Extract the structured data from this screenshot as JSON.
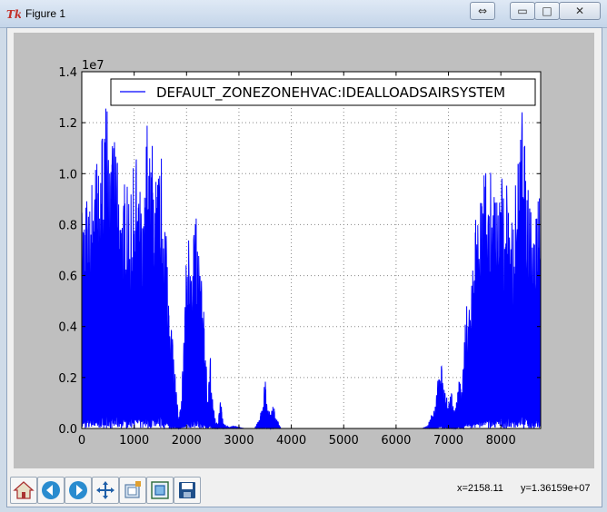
{
  "window": {
    "title": "Figure 1",
    "icon_text": "Tk"
  },
  "window_controls": {
    "restore": "⇔",
    "minimize": "▭",
    "maximize": "□",
    "close": "✕"
  },
  "status": {
    "x_readout": "x=2158.11",
    "y_readout": "y=1.36159e+07"
  },
  "toolbar": {
    "buttons": [
      "home-icon",
      "back-icon",
      "forward-icon",
      "pan-icon",
      "configure-subplots-icon",
      "zoom-icon",
      "save-icon"
    ]
  },
  "chart_data": {
    "type": "line",
    "title": "",
    "xlabel": "",
    "ylabel": "",
    "y_offset_text": "1e7",
    "xlim": [
      0,
      8760
    ],
    "ylim": [
      0,
      14000000
    ],
    "xticks": [
      0,
      1000,
      2000,
      3000,
      4000,
      5000,
      6000,
      7000,
      8000
    ],
    "xtick_labels": [
      "0",
      "1000",
      "2000",
      "3000",
      "4000",
      "5000",
      "6000",
      "7000",
      "8000"
    ],
    "yticks": [
      0,
      2000000,
      4000000,
      6000000,
      8000000,
      10000000,
      12000000,
      14000000
    ],
    "ytick_labels": [
      "0.0",
      "0.2",
      "0.4",
      "0.6",
      "0.8",
      "1.0",
      "1.2",
      "1.4"
    ],
    "grid": true,
    "legend_position": "top-right",
    "line_color": "#0000ff",
    "series": [
      {
        "name": "DEFAULT_ZONEZONEHVAC:IDEALLOADSAIRSYSTEM",
        "envelope_x": [
          0,
          50,
          100,
          150,
          200,
          250,
          300,
          350,
          400,
          450,
          500,
          550,
          600,
          650,
          700,
          750,
          800,
          850,
          900,
          950,
          1000,
          1050,
          1100,
          1150,
          1200,
          1250,
          1300,
          1350,
          1400,
          1450,
          1500,
          1550,
          1600,
          1650,
          1700,
          1750,
          1800,
          1850,
          1900,
          1950,
          2000,
          2050,
          2100,
          2150,
          2200,
          2250,
          2300,
          2350,
          2400,
          2450,
          2500,
          2550,
          2600,
          2650,
          2700,
          2800,
          2900,
          3000,
          3100,
          3200,
          3300,
          3400,
          3450,
          3500,
          3550,
          3600,
          3650,
          3700,
          3800,
          4000,
          5000,
          6000,
          6500,
          6600,
          6650,
          6700,
          6750,
          6800,
          6850,
          6900,
          6950,
          7000,
          7050,
          7100,
          7150,
          7200,
          7250,
          7300,
          7350,
          7400,
          7450,
          7500,
          7550,
          7600,
          7650,
          7700,
          7750,
          7800,
          7850,
          7900,
          7950,
          8000,
          8050,
          8100,
          8150,
          8200,
          8250,
          8300,
          8350,
          8400,
          8450,
          8500,
          8550,
          8600,
          8650,
          8700,
          8760
        ],
        "envelope_y": [
          8800000,
          8500000,
          9300000,
          8700000,
          10200000,
          10900000,
          10600000,
          11400000,
          12100000,
          13300000,
          12700000,
          10300000,
          11500000,
          12200000,
          9900000,
          8600000,
          9500000,
          10300000,
          8700000,
          9700000,
          10500000,
          10800000,
          9800000,
          8400000,
          9600000,
          12700000,
          10700000,
          11400000,
          10200000,
          9900000,
          11800000,
          9500000,
          8100000,
          6300000,
          4300000,
          3300000,
          1600000,
          400000,
          1100000,
          3900000,
          7100000,
          8000000,
          7600000,
          8600000,
          8100000,
          7000000,
          5300000,
          4100000,
          1400000,
          3000000,
          1200000,
          300000,
          200000,
          1300000,
          200000,
          50000,
          100000,
          50000,
          0,
          0,
          0,
          500000,
          900000,
          2000000,
          800000,
          600000,
          1100000,
          500000,
          0,
          0,
          0,
          0,
          0,
          100000,
          400000,
          600000,
          900000,
          2000000,
          3000000,
          1700000,
          1400000,
          1200000,
          1600000,
          700000,
          1000000,
          2000000,
          1600000,
          3400000,
          5200000,
          5100000,
          6300000,
          8100000,
          9200000,
          8800000,
          9300000,
          10500000,
          8700000,
          10800000,
          9100000,
          9800000,
          8800000,
          10500000,
          9300000,
          9700000,
          9600000,
          8400000,
          8900000,
          10800000,
          10300000,
          12800000,
          11800000,
          9100000,
          10000000,
          8300000,
          8900000,
          9600000,
          9800000
        ]
      }
    ]
  }
}
